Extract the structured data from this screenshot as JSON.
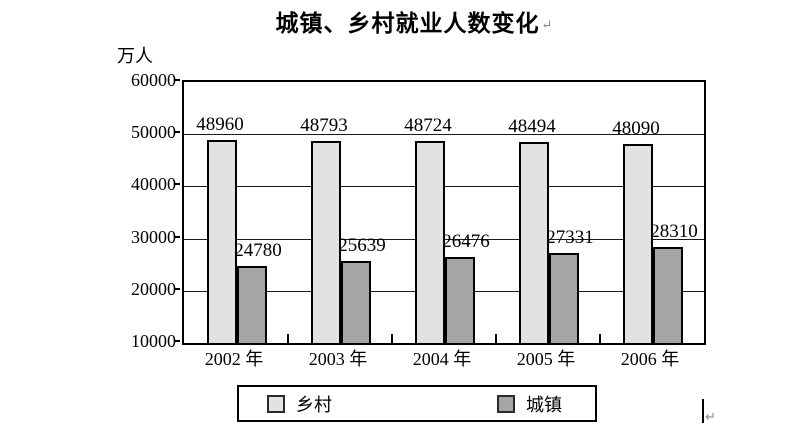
{
  "page": {
    "title": "城镇、乡村就业人数变化",
    "paragraph_mark": "↵",
    "cursor_mark": "↵"
  },
  "chart_data": {
    "type": "bar",
    "title": "城镇、乡村就业人数变化",
    "ylabel": "万人",
    "xlabel": "",
    "categories": [
      "2002 年",
      "2003 年",
      "2004 年",
      "2005 年",
      "2006 年"
    ],
    "series": [
      {
        "key": "rural",
        "name": "乡村",
        "color": "#e2e2e2",
        "values": [
          48960,
          48793,
          48724,
          48494,
          48090
        ]
      },
      {
        "key": "urban",
        "name": "城镇",
        "color": "#a5a5a5",
        "values": [
          24780,
          25639,
          26476,
          27331,
          28310
        ]
      }
    ],
    "ylim": [
      10000,
      60000
    ],
    "yticks": [
      10000,
      20000,
      30000,
      40000,
      50000,
      60000
    ],
    "grid": true,
    "legend_position": "bottom",
    "bar_labels_shown": true
  }
}
